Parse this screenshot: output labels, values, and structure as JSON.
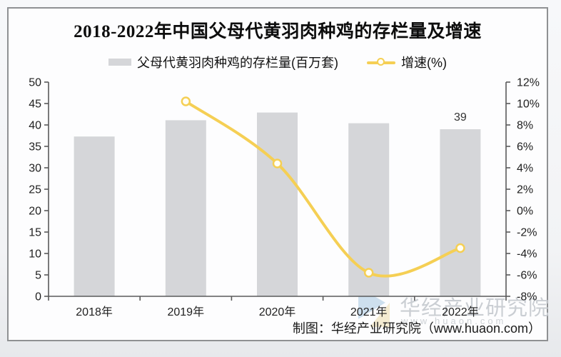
{
  "page": {
    "title": "2018-2022年中国父母代黄羽肉种鸡的存栏量及增速",
    "footer": "制图：华经产业研究院（www.huaon.com）",
    "watermark": {
      "name": "华经产业研究院",
      "url": "www.huaon.com"
    }
  },
  "legend": [
    {
      "label": "父母代黄羽肉种鸡的存栏量(百万套)",
      "type": "bar",
      "color": "#d5d6d9"
    },
    {
      "label": "增速(%)",
      "type": "line",
      "color": "#f5cf54"
    }
  ],
  "chart_data": {
    "type": "bar+line combo",
    "title": "2018-2022年中国父母代黄羽肉种鸡的存栏量及增速",
    "categories": [
      "2018年",
      "2019年",
      "2020年",
      "2021年",
      "2022年"
    ],
    "series": [
      {
        "name": "父母代黄羽肉种鸡的存栏量(百万套)",
        "type": "bar",
        "axis": "left",
        "color": "#d5d6d9",
        "values": [
          37.3,
          41.1,
          42.9,
          40.4,
          39
        ],
        "point_labels": [
          null,
          null,
          null,
          null,
          "39"
        ]
      },
      {
        "name": "增速(%)",
        "type": "line",
        "axis": "right",
        "color": "#f5cf54",
        "marker_fill": "#fffef5",
        "values": [
          null,
          10.2,
          4.4,
          -5.8,
          -3.5
        ]
      }
    ],
    "left_axis": {
      "min": 0,
      "max": 50,
      "step": 5,
      "ticks": [
        "0",
        "5",
        "10",
        "15",
        "20",
        "25",
        "30",
        "35",
        "40",
        "45",
        "50"
      ]
    },
    "right_axis": {
      "min": -8,
      "max": 12,
      "step": 2,
      "ticks": [
        "-8%",
        "-6%",
        "-4%",
        "-2%",
        "0%",
        "2%",
        "4%",
        "6%",
        "8%",
        "10%",
        "12%"
      ]
    },
    "grid": false,
    "legend_position": "top"
  }
}
